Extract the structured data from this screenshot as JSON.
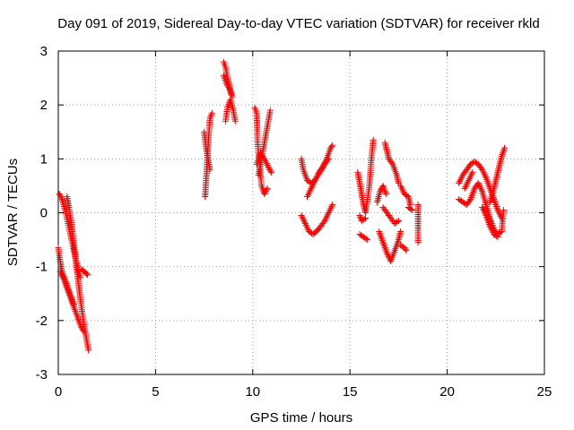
{
  "chart_data": {
    "type": "scatter",
    "title": "Day 091 of 2019, Sidereal Day-to-day VTEC variation (SDTVAR) for receiver rkld",
    "xlabel": "GPS time / hours",
    "ylabel": "SDTVAR / TECUs",
    "xlim": [
      0,
      25
    ],
    "ylim": [
      -3,
      3
    ],
    "xticks": [
      0,
      5,
      10,
      15,
      20,
      25
    ],
    "yticks": [
      -3,
      -2,
      -1,
      0,
      1,
      2,
      3
    ],
    "grid": true,
    "marker": "+",
    "color": "#ff0000",
    "segments": [
      [
        [
          0.0,
          -0.65
        ],
        [
          0.1,
          -0.9
        ],
        [
          0.2,
          -1.1
        ],
        [
          0.35,
          -1.25
        ],
        [
          0.5,
          -1.4
        ],
        [
          0.65,
          -1.55
        ],
        [
          0.8,
          -1.7
        ]
      ],
      [
        [
          0.05,
          0.35
        ],
        [
          0.2,
          0.25
        ],
        [
          0.35,
          0.05
        ],
        [
          0.5,
          -0.2
        ],
        [
          0.65,
          -0.45
        ],
        [
          0.8,
          -0.7
        ],
        [
          0.95,
          -0.95
        ],
        [
          1.05,
          -1.1
        ],
        [
          1.15,
          -1.2
        ]
      ],
      [
        [
          0.45,
          0.3
        ],
        [
          0.55,
          0.1
        ],
        [
          0.65,
          -0.15
        ],
        [
          0.75,
          -0.45
        ],
        [
          0.85,
          -0.75
        ],
        [
          0.95,
          -1.05
        ],
        [
          1.05,
          -1.35
        ],
        [
          1.15,
          -1.65
        ],
        [
          1.25,
          -1.9
        ],
        [
          1.35,
          -2.15
        ],
        [
          1.45,
          -2.35
        ],
        [
          1.55,
          -2.55
        ]
      ],
      [
        [
          0.1,
          -1.1
        ],
        [
          0.25,
          -1.2
        ],
        [
          0.4,
          -1.35
        ],
        [
          0.55,
          -1.5
        ],
        [
          0.7,
          -1.65
        ],
        [
          0.85,
          -1.8
        ],
        [
          1.0,
          -1.95
        ],
        [
          1.15,
          -2.1
        ],
        [
          1.3,
          -2.2
        ]
      ],
      [
        [
          1.2,
          -1.05
        ],
        [
          1.35,
          -1.1
        ],
        [
          1.5,
          -1.15
        ]
      ],
      [
        [
          7.55,
          0.3
        ],
        [
          7.6,
          0.6
        ],
        [
          7.65,
          0.9
        ],
        [
          7.7,
          1.2
        ],
        [
          7.75,
          1.5
        ],
        [
          7.8,
          1.75
        ],
        [
          7.9,
          1.85
        ]
      ],
      [
        [
          7.5,
          1.5
        ],
        [
          7.6,
          1.2
        ],
        [
          7.7,
          1.0
        ],
        [
          7.8,
          0.8
        ]
      ],
      [
        [
          8.5,
          2.8
        ],
        [
          8.6,
          2.7
        ],
        [
          8.7,
          2.5
        ],
        [
          8.8,
          2.35
        ],
        [
          8.9,
          2.2
        ]
      ],
      [
        [
          8.5,
          2.55
        ],
        [
          8.65,
          2.4
        ],
        [
          8.8,
          2.3
        ],
        [
          8.95,
          2.15
        ]
      ],
      [
        [
          8.6,
          1.7
        ],
        [
          8.7,
          1.95
        ],
        [
          8.85,
          2.1
        ],
        [
          9.0,
          1.9
        ],
        [
          9.1,
          1.7
        ]
      ],
      [
        [
          10.1,
          1.95
        ],
        [
          10.2,
          1.85
        ],
        [
          10.25,
          1.3
        ],
        [
          10.35,
          0.9
        ],
        [
          10.45,
          0.5
        ],
        [
          10.6,
          0.35
        ],
        [
          10.75,
          0.45
        ]
      ],
      [
        [
          10.3,
          0.7
        ],
        [
          10.45,
          1.0
        ],
        [
          10.6,
          1.3
        ],
        [
          10.75,
          1.6
        ],
        [
          10.9,
          1.9
        ]
      ],
      [
        [
          10.2,
          0.9
        ],
        [
          10.4,
          1.1
        ],
        [
          10.6,
          1.0
        ],
        [
          10.8,
          0.85
        ],
        [
          10.95,
          0.75
        ]
      ],
      [
        [
          12.5,
          1.0
        ],
        [
          12.6,
          0.8
        ],
        [
          12.8,
          0.6
        ],
        [
          13.0,
          0.55
        ],
        [
          13.2,
          0.6
        ],
        [
          13.4,
          0.75
        ],
        [
          13.6,
          0.85
        ],
        [
          13.8,
          1.0
        ],
        [
          14.0,
          1.2
        ],
        [
          14.1,
          1.25
        ]
      ],
      [
        [
          12.8,
          0.3
        ],
        [
          13.0,
          0.45
        ],
        [
          13.2,
          0.6
        ],
        [
          13.45,
          0.75
        ],
        [
          13.7,
          0.9
        ],
        [
          13.9,
          1.0
        ]
      ],
      [
        [
          12.5,
          -0.05
        ],
        [
          12.7,
          -0.2
        ],
        [
          12.9,
          -0.35
        ],
        [
          13.1,
          -0.4
        ],
        [
          13.4,
          -0.3
        ],
        [
          13.7,
          -0.15
        ],
        [
          13.9,
          0.0
        ],
        [
          14.1,
          0.15
        ]
      ],
      [
        [
          15.4,
          0.75
        ],
        [
          15.5,
          0.55
        ],
        [
          15.6,
          0.35
        ],
        [
          15.7,
          0.15
        ],
        [
          15.8,
          0.0
        ],
        [
          15.9,
          0.25
        ],
        [
          16.0,
          0.5
        ],
        [
          16.1,
          1.0
        ],
        [
          16.2,
          1.35
        ]
      ],
      [
        [
          15.5,
          -0.05
        ],
        [
          15.6,
          -0.15
        ],
        [
          15.8,
          -0.1
        ]
      ],
      [
        [
          15.5,
          -0.4
        ],
        [
          15.7,
          -0.45
        ],
        [
          15.9,
          -0.5
        ]
      ],
      [
        [
          16.4,
          0.2
        ],
        [
          16.55,
          0.4
        ],
        [
          16.7,
          0.5
        ],
        [
          16.85,
          0.35
        ]
      ],
      [
        [
          16.8,
          1.3
        ],
        [
          16.9,
          1.15
        ],
        [
          17.0,
          1.0
        ],
        [
          17.2,
          0.9
        ],
        [
          17.4,
          0.7
        ],
        [
          17.5,
          0.55
        ]
      ],
      [
        [
          16.5,
          -0.35
        ],
        [
          16.7,
          -0.55
        ],
        [
          16.9,
          -0.75
        ],
        [
          17.1,
          -0.9
        ],
        [
          17.3,
          -0.7
        ],
        [
          17.5,
          -0.5
        ],
        [
          17.6,
          -0.35
        ]
      ],
      [
        [
          16.7,
          0.1
        ],
        [
          16.9,
          0.0
        ],
        [
          17.1,
          -0.1
        ],
        [
          17.3,
          -0.2
        ],
        [
          17.5,
          -0.15
        ]
      ],
      [
        [
          17.6,
          0.5
        ],
        [
          17.8,
          0.35
        ],
        [
          18.0,
          0.3
        ],
        [
          18.1,
          0.15
        ]
      ],
      [
        [
          17.6,
          -0.6
        ],
        [
          17.8,
          -0.65
        ],
        [
          17.9,
          -0.7
        ]
      ],
      [
        [
          18.0,
          0.1
        ],
        [
          18.2,
          0.05
        ]
      ],
      [
        [
          18.5,
          0.15
        ],
        [
          18.5,
          0.0
        ],
        [
          18.5,
          -0.3
        ],
        [
          18.5,
          -0.55
        ]
      ],
      [
        [
          20.6,
          0.55
        ],
        [
          20.8,
          0.7
        ],
        [
          21.0,
          0.8
        ],
        [
          21.2,
          0.9
        ],
        [
          21.4,
          0.95
        ],
        [
          21.6,
          0.9
        ],
        [
          21.8,
          0.8
        ],
        [
          22.0,
          0.65
        ],
        [
          22.2,
          0.45
        ],
        [
          22.4,
          0.25
        ],
        [
          22.6,
          0.05
        ],
        [
          22.8,
          -0.1
        ]
      ],
      [
        [
          20.6,
          0.25
        ],
        [
          20.8,
          0.2
        ],
        [
          21.0,
          0.15
        ],
        [
          21.2,
          0.25
        ],
        [
          21.4,
          0.45
        ],
        [
          21.6,
          0.55
        ],
        [
          21.8,
          0.4
        ],
        [
          22.0,
          0.15
        ],
        [
          22.2,
          -0.1
        ],
        [
          22.4,
          -0.3
        ],
        [
          22.6,
          -0.4
        ],
        [
          22.8,
          -0.35
        ],
        [
          22.9,
          0.05
        ]
      ],
      [
        [
          21.8,
          0.1
        ],
        [
          22.0,
          -0.05
        ],
        [
          22.2,
          -0.25
        ],
        [
          22.4,
          -0.4
        ],
        [
          22.6,
          -0.45
        ]
      ],
      [
        [
          22.2,
          0.2
        ],
        [
          22.4,
          0.45
        ],
        [
          22.6,
          0.75
        ],
        [
          22.8,
          1.05
        ],
        [
          22.95,
          1.2
        ]
      ],
      [
        [
          20.9,
          0.45
        ],
        [
          21.1,
          0.6
        ],
        [
          21.3,
          0.75
        ]
      ]
    ]
  }
}
